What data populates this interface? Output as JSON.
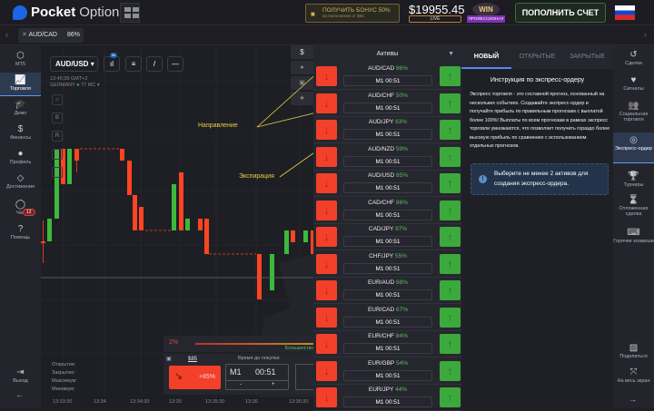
{
  "header": {
    "logo_bold": "Pocket",
    "logo_light": "Option",
    "bonus_title": "ПОЛУЧИТЬ БОНУС 50%",
    "bonus_sub": "на пополнение от $50",
    "balance": "$19955.45",
    "account_type": "LIVE",
    "win_badge": "WIN",
    "level": "ПРОФЕССИОНАЛ",
    "deposit_label": "ПОПОЛНИТЬ СЧЕТ"
  },
  "tab": {
    "asset": "AUD/CAD",
    "payout": "86%"
  },
  "left_nav": [
    {
      "label": "MT5",
      "icon": "mt5-icon"
    },
    {
      "label": "Торговля",
      "icon": "chart-icon"
    },
    {
      "label": "Демо",
      "icon": "graduation-cap-icon"
    },
    {
      "label": "Финансы",
      "icon": "dollar-icon"
    },
    {
      "label": "Профиль",
      "icon": "user-icon"
    },
    {
      "label": "Достижения",
      "icon": "diamond-icon"
    },
    {
      "label": "Чат",
      "icon": "chat-icon"
    },
    {
      "label": "Помощь",
      "icon": "help-icon"
    },
    {
      "label": "Выход",
      "icon": "logout-icon"
    }
  ],
  "chat_badge": "12",
  "chart": {
    "symbol": "AUD/USD",
    "tf_badge": "5s",
    "time": "13:45:39 GMT+2",
    "region": "GERMANY",
    "ping": "77 MC",
    "side_buttons": [
      "B",
      "R",
      "A",
      "G"
    ],
    "annotation_direction": "Направление",
    "annotation_expiration": "Экспирация",
    "ohlc_labels": [
      "Открытие:",
      "Закрытие:",
      "Максимум:",
      "Минимум:"
    ],
    "time_labels": [
      "13:33:30",
      "13:34",
      "13:34:30",
      "13:35",
      "13:35:30",
      "13:36",
      "13:36:30"
    ],
    "colors": {
      "up": "#3cb93c",
      "down": "#ff4422"
    }
  },
  "trade": {
    "sentiment": "2%",
    "majority": "Большинство",
    "amount": "$85",
    "payout": "+85%",
    "time_label": "Время до покупки",
    "tf": "M1",
    "timer": "00:51",
    "minus": "-",
    "plus": "+"
  },
  "assets": {
    "title": "Активы",
    "items": [
      {
        "name": "AUD/CAD",
        "pct": "86%",
        "exp": "M1 00:51"
      },
      {
        "name": "AUD/CHF",
        "pct": "50%",
        "exp": "M1 00:51"
      },
      {
        "name": "AUD/JPY",
        "pct": "63%",
        "exp": "M1 00:51"
      },
      {
        "name": "AUD/NZD",
        "pct": "59%",
        "exp": "M1 00:51"
      },
      {
        "name": "AUD/USD",
        "pct": "85%",
        "exp": "M1 00:51"
      },
      {
        "name": "CAD/CHF",
        "pct": "86%",
        "exp": "M1 00:51"
      },
      {
        "name": "CAD/JPY",
        "pct": "87%",
        "exp": "M1 00:51"
      },
      {
        "name": "CHF/JPY",
        "pct": "55%",
        "exp": "M1 00:51"
      },
      {
        "name": "EUR/AUD",
        "pct": "68%",
        "exp": "M1 00:51"
      },
      {
        "name": "EUR/CAD",
        "pct": "67%",
        "exp": "M1 00:51"
      },
      {
        "name": "EUR/CHF",
        "pct": "84%",
        "exp": "M1 00:51"
      },
      {
        "name": "EUR/GBP",
        "pct": "54%",
        "exp": "M1 00:51"
      },
      {
        "name": "EUR/JPY",
        "pct": "44%",
        "exp": "M1 00:51"
      }
    ]
  },
  "express": {
    "tabs": [
      "НОВЫЙ",
      "ОТКРЫТЫЕ",
      "ЗАКРЫТЫЕ"
    ],
    "title": "Инструкция по экспресс-ордеру",
    "text": "Экспресс торговля - это составной прогноз, основанный на нескольких событиях. Создавайте экспресс-ордер и получайте прибыль по правильным прогнозам с выплатой более 100%! Выплаты по всем прогнозам в рамках экспресс торговли умножаются, что позволяет получить гораздо более высокую прибыль по сравнению с использованием отдельных прогнозов.",
    "notice": "Выберите не менее 2 активов для создания экспресс-ордера."
  },
  "right_nav": [
    {
      "label": "Сделки",
      "icon": "history-icon"
    },
    {
      "label": "Сигналы",
      "icon": "heartbeat-icon"
    },
    {
      "label": "Социальная торговля",
      "icon": "users-icon"
    },
    {
      "label": "Экспресс-ордер",
      "icon": "express-icon"
    },
    {
      "label": "Турниры",
      "icon": "trophy-icon"
    },
    {
      "label": "Отложенная сделка",
      "icon": "hourglass-icon"
    },
    {
      "label": "Горячие клавиши",
      "icon": "keyboard-icon"
    },
    {
      "label": "Поделиться",
      "icon": "image-icon"
    },
    {
      "label": "На весь экран",
      "icon": "fullscreen-icon"
    }
  ]
}
